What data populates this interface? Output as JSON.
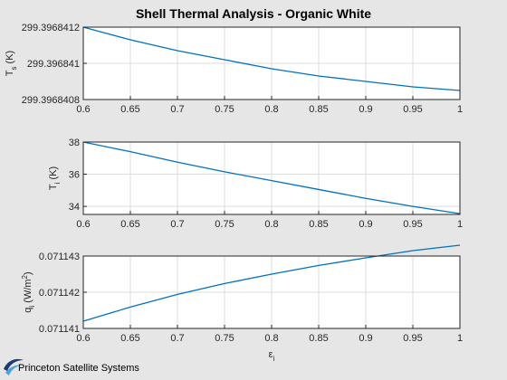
{
  "title": "Shell Thermal Analysis - Organic White",
  "chart_data": [
    {
      "type": "line",
      "ylabel_main": "T",
      "ylabel_sub": "s",
      "ylabel_unit": "(K)",
      "xlabel_main": "",
      "xlabel_sub": "",
      "x": [
        0.6,
        0.65,
        0.7,
        0.75,
        0.8,
        0.85,
        0.9,
        0.95,
        1.0
      ],
      "y": [
        299.3968412,
        299.39684113,
        299.39684107,
        299.39684102,
        299.39684097,
        299.39684093,
        299.3968409,
        299.39684087,
        299.39684085
      ],
      "xlim": [
        0.6,
        1
      ],
      "ylim": [
        299.3968408,
        299.3968412
      ],
      "xticks": [
        0.6,
        0.65,
        0.7,
        0.75,
        0.8,
        0.85,
        0.9,
        0.95,
        1
      ],
      "xtick_labels": [
        "0.6",
        "0.65",
        "0.7",
        "0.75",
        "0.8",
        "0.85",
        "0.9",
        "0.95",
        "1"
      ],
      "yticks": [
        299.3968408,
        299.396841,
        299.3968412
      ],
      "ytick_labels": [
        "299.3968408",
        "299.396841",
        "299.3968412"
      ],
      "grid": true
    },
    {
      "type": "line",
      "ylabel_main": "T",
      "ylabel_sub": "i",
      "ylabel_unit": "(K)",
      "xlabel_main": "",
      "xlabel_sub": "",
      "x": [
        0.6,
        0.65,
        0.7,
        0.75,
        0.8,
        0.85,
        0.9,
        0.95,
        1.0
      ],
      "y": [
        38.0,
        37.4,
        36.75,
        36.15,
        35.6,
        35.05,
        34.5,
        34.0,
        33.55
      ],
      "xlim": [
        0.6,
        1
      ],
      "ylim": [
        33.5,
        38
      ],
      "xticks": [
        0.6,
        0.65,
        0.7,
        0.75,
        0.8,
        0.85,
        0.9,
        0.95,
        1
      ],
      "xtick_labels": [
        "0.6",
        "0.65",
        "0.7",
        "0.75",
        "0.8",
        "0.85",
        "0.9",
        "0.95",
        "1"
      ],
      "yticks": [
        34,
        36,
        38
      ],
      "ytick_labels": [
        "34",
        "36",
        "38"
      ],
      "grid": true
    },
    {
      "type": "line",
      "ylabel_main": "q",
      "ylabel_sub": "i",
      "ylabel_unit": "(W/m",
      "ylabel_sup": "2",
      "ylabel_close": ")",
      "xlabel_main": "ε",
      "xlabel_sub": "i",
      "x": [
        0.6,
        0.65,
        0.7,
        0.75,
        0.8,
        0.85,
        0.9,
        0.95,
        1.0
      ],
      "y": [
        0.0711412,
        0.07114159,
        0.07114194,
        0.07114224,
        0.0711425,
        0.07114274,
        0.07114295,
        0.07114315,
        0.0711433
      ],
      "xlim": [
        0.6,
        1
      ],
      "ylim": [
        0.071141,
        0.071143
      ],
      "xticks": [
        0.6,
        0.65,
        0.7,
        0.75,
        0.8,
        0.85,
        0.9,
        0.95,
        1
      ],
      "xtick_labels": [
        "0.6",
        "0.65",
        "0.7",
        "0.75",
        "0.8",
        "0.85",
        "0.9",
        "0.95",
        "1"
      ],
      "yticks": [
        0.071141,
        0.071142,
        0.071143
      ],
      "ytick_labels": [
        "0.071141",
        "0.071142",
        "0.071143"
      ],
      "grid": true
    }
  ],
  "logo": {
    "text": "Princeton Satellite Systems",
    "icon": "swoosh-logo-icon",
    "colors": {
      "dark": "#1f3a73",
      "light": "#4aa3d8"
    }
  },
  "colors": {
    "series": "#0072bd",
    "background": "#e6e6e6",
    "axes": "#ffffff",
    "grid": "#dcdcdc"
  }
}
